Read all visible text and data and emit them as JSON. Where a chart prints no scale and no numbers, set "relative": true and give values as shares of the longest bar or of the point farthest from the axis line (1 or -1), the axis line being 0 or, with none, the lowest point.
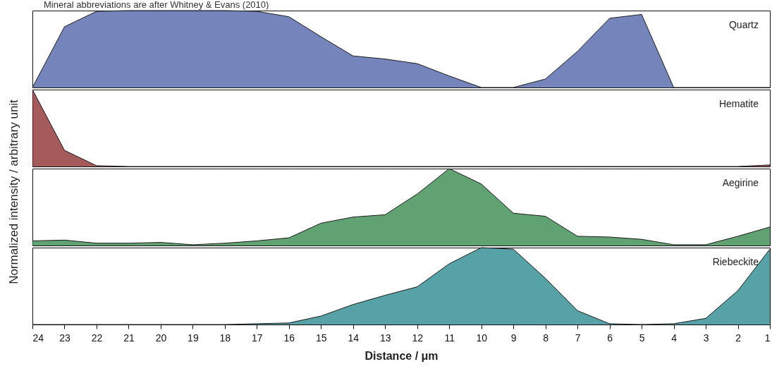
{
  "chart_data": [
    {
      "type": "area",
      "ylabel": "Normalized intensity / arbitrary unit",
      "annotations": [
        "Mineral abbreviations are after Whitney & Evans (2010)"
      ],
      "x": [
        24,
        23,
        22,
        21,
        20,
        19,
        18,
        17,
        16,
        15,
        14,
        13,
        12,
        11,
        10,
        9,
        8,
        7,
        6,
        5,
        4,
        3,
        2,
        1
      ],
      "xlim": [
        24,
        1
      ],
      "relative": true,
      "tick_labels": false,
      "series": [
        {
          "name": "Quartz",
          "color": "#3a51a0",
          "values": [
            0,
            0.79,
            0.99,
            1.0,
            1.0,
            1.0,
            1.0,
            0.99,
            0.92,
            0.66,
            0.41,
            0.37,
            0.31,
            0.15,
            0,
            0,
            0.11,
            0.47,
            0.9,
            0.95,
            0,
            0,
            0,
            0
          ]
        }
      ]
    },
    {
      "type": "area",
      "x": [
        24,
        23,
        22,
        21,
        20,
        19,
        18,
        17,
        16,
        15,
        14,
        13,
        12,
        11,
        10,
        9,
        8,
        7,
        6,
        5,
        4,
        3,
        2,
        1
      ],
      "xlim": [
        24,
        1
      ],
      "relative": true,
      "tick_labels": false,
      "series": [
        {
          "name": "Hematite",
          "color": "#7f1416",
          "values": [
            1,
            0.21,
            0.01,
            0,
            0,
            0,
            0,
            0,
            0,
            0,
            0,
            0,
            0,
            0,
            0,
            0,
            0,
            0,
            0,
            0,
            0,
            0,
            0,
            0.02
          ]
        }
      ]
    },
    {
      "type": "area",
      "x": [
        24,
        23,
        22,
        21,
        20,
        19,
        18,
        17,
        16,
        15,
        14,
        13,
        12,
        11,
        10,
        9,
        8,
        7,
        6,
        5,
        4,
        3,
        2,
        1
      ],
      "xlim": [
        24,
        1
      ],
      "relative": true,
      "tick_labels": false,
      "series": [
        {
          "name": "Aegirine",
          "color": "#1e7a36",
          "values": [
            0.06,
            0.07,
            0.03,
            0.03,
            0.04,
            0.01,
            0.03,
            0.06,
            0.1,
            0.29,
            0.37,
            0.4,
            0.67,
            1,
            0.8,
            0.42,
            0.38,
            0.12,
            0.11,
            0.08,
            0.01,
            0.01,
            0.12,
            0.24
          ]
        }
      ]
    },
    {
      "type": "area",
      "xlabel": "Distance / μm",
      "x": [
        24,
        23,
        22,
        21,
        20,
        19,
        18,
        17,
        16,
        15,
        14,
        13,
        12,
        11,
        10,
        9,
        8,
        7,
        6,
        5,
        4,
        3,
        2,
        1
      ],
      "xlim": [
        24,
        1
      ],
      "xticks": [
        24,
        23,
        22,
        21,
        20,
        19,
        18,
        17,
        16,
        15,
        14,
        13,
        12,
        11,
        10,
        9,
        8,
        7,
        6,
        5,
        4,
        3,
        2,
        1
      ],
      "relative": true,
      "tick_labels": "x",
      "series": [
        {
          "name": "Riebeckite",
          "color": "#0f7a80",
          "values": [
            0,
            0,
            0,
            0,
            0,
            0,
            0,
            0.01,
            0.02,
            0.11,
            0.26,
            0.38,
            0.49,
            0.79,
            1,
            0.98,
            0.6,
            0.18,
            0.01,
            0,
            0.01,
            0.08,
            0.44,
            0.98
          ]
        }
      ]
    }
  ]
}
